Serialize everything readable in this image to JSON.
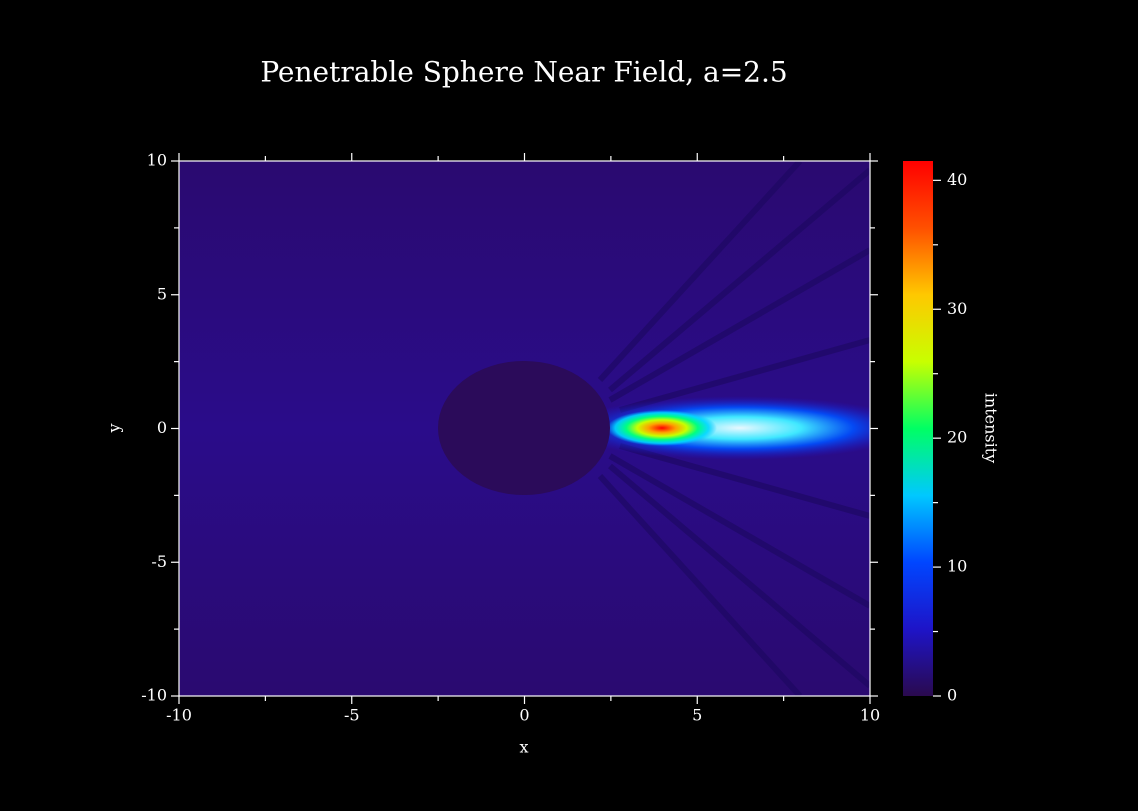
{
  "chart_data": {
    "type": "heatmap",
    "title": "Penetrable Sphere Near Field, a=2.5",
    "x_label": "x",
    "y_label": "y",
    "xlim": [
      -10,
      10
    ],
    "xticks": [
      -10,
      -5,
      0,
      5,
      10
    ],
    "xminorticks": [
      -7.5,
      -2.5,
      2.5,
      7.5
    ],
    "ylim": [
      -10,
      10
    ],
    "yticks": [
      -10,
      -5,
      0,
      5,
      10
    ],
    "yminorticks": [
      -7.5,
      -2.5,
      2.5,
      7.5
    ],
    "colorbar": {
      "label": "intensity",
      "lim": [
        0,
        41.5
      ],
      "ticks": [
        0,
        10,
        20,
        30,
        40
      ],
      "minorticks": [
        5,
        15,
        25,
        35
      ],
      "colormap": [
        "#2a0a4e",
        "#1e14c8",
        "#0046ff",
        "#00c8ff",
        "#00ff64",
        "#c8ff00",
        "#ffc800",
        "#ff5000",
        "#ff0000"
      ]
    }
  }
}
